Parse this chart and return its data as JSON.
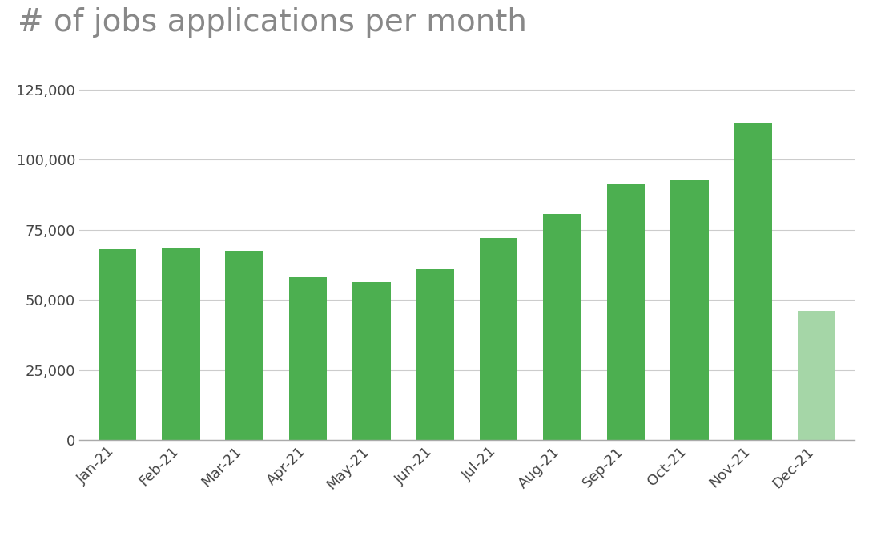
{
  "title": "# of jobs applications per month",
  "categories": [
    "Jan-21",
    "Feb-21",
    "Mar-21",
    "Apr-21",
    "May-21",
    "Jun-21",
    "Jul-21",
    "Aug-21",
    "Sep-21",
    "Oct-21",
    "Nov-21",
    "Dec-21"
  ],
  "values": [
    68000,
    68500,
    67500,
    58000,
    56500,
    61000,
    72000,
    80500,
    91500,
    93000,
    113000,
    46000
  ],
  "bar_colors": [
    "#4caf50",
    "#4caf50",
    "#4caf50",
    "#4caf50",
    "#4caf50",
    "#4caf50",
    "#4caf50",
    "#4caf50",
    "#4caf50",
    "#4caf50",
    "#4caf50",
    "#a5d6a7"
  ],
  "ylim": [
    0,
    132000
  ],
  "yticks": [
    0,
    25000,
    50000,
    75000,
    100000,
    125000
  ],
  "background_color": "#ffffff",
  "title_fontsize": 28,
  "tick_fontsize": 13,
  "title_color": "#888888",
  "tick_color": "#444444",
  "grid_color": "#cccccc",
  "bar_width": 0.6
}
